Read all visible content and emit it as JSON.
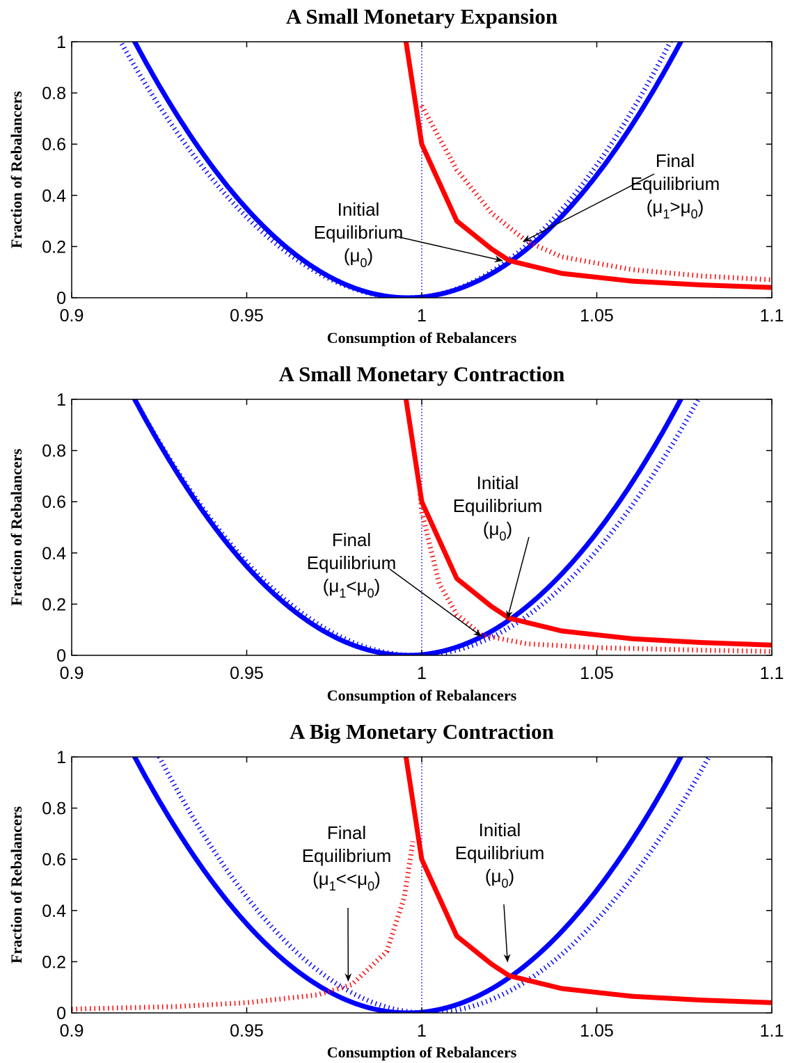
{
  "chart_data": [
    {
      "type": "line",
      "title": "A Small Monetary Expansion",
      "xlabel": "Consumption of Rebalancers",
      "ylabel": "Fraction of Rebalancers",
      "xlim": [
        0.9,
        1.1
      ],
      "ylim": [
        0,
        1
      ],
      "xticks": [
        "0.9",
        "0.95",
        "1",
        "1.05",
        "1.1"
      ],
      "yticks": [
        "0",
        "0.2",
        "0.4",
        "0.6",
        "0.8",
        "1"
      ],
      "vertical_reference_line": {
        "x": 1.0,
        "style": "dotted",
        "color": "#0000ff"
      },
      "series": [
        {
          "color": "#0000ff",
          "style": "solid",
          "kind": "parabola",
          "vertex": 0.996,
          "reaches_one_at": [
            0.918,
            1.074
          ]
        },
        {
          "color": "#0000ff",
          "style": "dotted",
          "kind": "parabola",
          "vertex": 0.996,
          "reaches_one_at": [
            0.914,
            1.071
          ]
        },
        {
          "color": "#ff0000",
          "style": "solid",
          "kind": "decay",
          "points": [
            [
              0.9955,
              1.0
            ],
            [
              1.0,
              0.6
            ],
            [
              1.01,
              0.3
            ],
            [
              1.02,
              0.19
            ],
            [
              1.025,
              0.145
            ],
            [
              1.04,
              0.095
            ],
            [
              1.06,
              0.065
            ],
            [
              1.08,
              0.05
            ],
            [
              1.1,
              0.04
            ]
          ]
        },
        {
          "color": "#ff0000",
          "style": "dotted",
          "kind": "decay",
          "points": [
            [
              1.0,
              0.75
            ],
            [
              1.01,
              0.5
            ],
            [
              1.02,
              0.33
            ],
            [
              1.03,
              0.22
            ],
            [
              1.04,
              0.16
            ],
            [
              1.06,
              0.11
            ],
            [
              1.08,
              0.085
            ],
            [
              1.1,
              0.07
            ]
          ]
        }
      ],
      "annotations": [
        {
          "lines": [
            "Initial",
            "Equilibrium"
          ],
          "mu": {
            "main": "(μ",
            "sub": "0",
            "rest": ")"
          },
          "arrow_to": [
            1.023,
            0.145
          ]
        },
        {
          "lines": [
            "Final",
            "Equilibrium"
          ],
          "mu": {
            "main": "(μ",
            "sub": "1",
            "rest": ">μ",
            "sub2": "0",
            "rest2": ")"
          },
          "arrow_to": [
            1.029,
            0.22
          ]
        }
      ]
    },
    {
      "type": "line",
      "title": "A Small Monetary Contraction",
      "xlabel": "Consumption of Rebalancers",
      "ylabel": "Fraction of Rebalancers",
      "xlim": [
        0.9,
        1.1
      ],
      "ylim": [
        0,
        1
      ],
      "xticks": [
        "0.9",
        "0.95",
        "1",
        "1.05",
        "1.1"
      ],
      "yticks": [
        "0",
        "0.2",
        "0.4",
        "0.6",
        "0.8",
        "1"
      ],
      "vertical_reference_line": {
        "x": 1.0,
        "style": "dotted",
        "color": "#0000ff"
      },
      "series": [
        {
          "color": "#0000ff",
          "style": "solid",
          "kind": "parabola",
          "vertex": 0.996,
          "reaches_one_at": [
            0.918,
            1.074
          ]
        },
        {
          "color": "#0000ff",
          "style": "dotted",
          "kind": "parabola",
          "vertex": 0.9985,
          "reaches_one_at": [
            0.918,
            1.079
          ]
        },
        {
          "color": "#ff0000",
          "style": "solid",
          "kind": "decay",
          "points": [
            [
              0.9955,
              1.0
            ],
            [
              1.0,
              0.6
            ],
            [
              1.01,
              0.3
            ],
            [
              1.02,
              0.19
            ],
            [
              1.025,
              0.145
            ],
            [
              1.04,
              0.095
            ],
            [
              1.06,
              0.065
            ],
            [
              1.08,
              0.05
            ],
            [
              1.1,
              0.04
            ]
          ]
        },
        {
          "color": "#ff0000",
          "style": "dotted",
          "kind": "decay",
          "points": [
            [
              0.9995,
              0.63
            ],
            [
              1.0,
              0.56
            ],
            [
              1.005,
              0.28
            ],
            [
              1.01,
              0.16
            ],
            [
              1.017,
              0.08
            ],
            [
              1.03,
              0.045
            ],
            [
              1.05,
              0.03
            ],
            [
              1.08,
              0.02
            ],
            [
              1.1,
              0.015
            ]
          ]
        }
      ],
      "annotations": [
        {
          "lines": [
            "Initial",
            "Equilibrium"
          ],
          "mu": {
            "main": "(μ",
            "sub": "0",
            "rest": ")"
          },
          "arrow_to": [
            1.0245,
            0.145
          ]
        },
        {
          "lines": [
            "Final",
            "Equilibrium"
          ],
          "mu": {
            "main": "(μ",
            "sub": "1",
            "rest": "<μ",
            "sub2": "0",
            "rest2": ")"
          },
          "arrow_to": [
            1.017,
            0.075
          ]
        }
      ]
    },
    {
      "type": "line",
      "title": "A Big Monetary Contraction",
      "xlabel": "Consumption of Rebalancers",
      "ylabel": "Fraction of Rebalancers",
      "xlim": [
        0.9,
        1.1
      ],
      "ylim": [
        0,
        1
      ],
      "xticks": [
        "0.9",
        "0.95",
        "1",
        "1.05",
        "1.1"
      ],
      "yticks": [
        "0",
        "0.2",
        "0.4",
        "0.6",
        "0.8",
        "1"
      ],
      "vertical_reference_line": {
        "x": 1.0,
        "style": "dotted",
        "color": "#0000ff"
      },
      "series": [
        {
          "color": "#0000ff",
          "style": "solid",
          "kind": "parabola",
          "vertex": 0.996,
          "reaches_one_at": [
            0.918,
            1.074
          ]
        },
        {
          "color": "#0000ff",
          "style": "dotted",
          "kind": "parabola",
          "vertex": 1.0015,
          "reaches_one_at": [
            0.925,
            1.082
          ]
        },
        {
          "color": "#ff0000",
          "style": "solid",
          "kind": "decay",
          "points": [
            [
              0.9955,
              1.0
            ],
            [
              1.0,
              0.6
            ],
            [
              1.01,
              0.3
            ],
            [
              1.02,
              0.19
            ],
            [
              1.025,
              0.145
            ],
            [
              1.04,
              0.095
            ],
            [
              1.06,
              0.065
            ],
            [
              1.08,
              0.05
            ],
            [
              1.1,
              0.04
            ]
          ]
        },
        {
          "color": "#ff0000",
          "style": "dotted",
          "kind": "growth",
          "points": [
            [
              0.9,
              0.015
            ],
            [
              0.93,
              0.025
            ],
            [
              0.95,
              0.04
            ],
            [
              0.97,
              0.07
            ],
            [
              0.98,
              0.11
            ],
            [
              0.99,
              0.24
            ],
            [
              0.995,
              0.45
            ],
            [
              0.9975,
              0.67
            ]
          ]
        }
      ],
      "annotations": [
        {
          "lines": [
            "Initial",
            "Equilibrium"
          ],
          "mu": {
            "main": "(μ",
            "sub": "0",
            "rest": ")"
          },
          "arrow_to": [
            1.0245,
            0.2
          ]
        },
        {
          "lines": [
            "Final",
            "Equilibrium"
          ],
          "mu": {
            "main": "(μ",
            "sub": "1",
            "rest": "<<μ",
            "sub2": "0",
            "rest2": ")"
          },
          "arrow_to": [
            0.979,
            0.125
          ]
        }
      ]
    }
  ]
}
